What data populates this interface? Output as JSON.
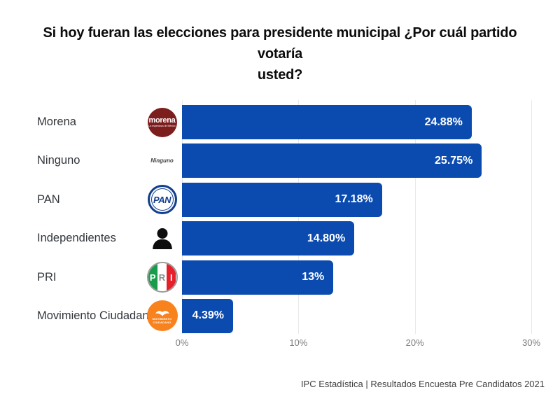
{
  "header": {
    "title_line1": "Si hoy fueran las elecciones para presidente municipal ¿Por cuál partido votaría",
    "title_line2": "usted?"
  },
  "footer": {
    "text": "IPC Estadística | Resultados Encuesta Pre Candidatos 2021"
  },
  "chart_data": {
    "type": "bar",
    "orientation": "horizontal",
    "title": "Si hoy fueran las elecciones para presidente municipal ¿Por cuál partido votaría usted?",
    "categories": [
      "Morena",
      "Ninguno",
      "PAN",
      "Independientes",
      "PRI",
      "Movimiento Ciudadano"
    ],
    "values": [
      24.88,
      25.75,
      17.18,
      14.8,
      13,
      4.39
    ],
    "value_labels": [
      "24.88%",
      "25.75%",
      "17.18%",
      "14.80%",
      "13%",
      "4.39%"
    ],
    "xlim": [
      0,
      30
    ],
    "x_ticks": [
      "0%",
      "10%",
      "20%",
      "30%"
    ],
    "x_tick_values": [
      0,
      10,
      20,
      30
    ],
    "grid": true,
    "bar_color": "#0b4bb0",
    "icons": [
      "morena-logo",
      "ninguno-text",
      "pan-logo",
      "person-silhouette",
      "pri-logo",
      "movimiento-ciudadano-logo"
    ]
  },
  "rows": [
    {
      "label": "Morena",
      "value": 24.88,
      "value_label": "24.88%"
    },
    {
      "label": "Ninguno",
      "value": 25.75,
      "value_label": "25.75%"
    },
    {
      "label": "PAN",
      "value": 17.18,
      "value_label": "17.18%"
    },
    {
      "label": "Independientes",
      "value": 14.8,
      "value_label": "14.80%"
    },
    {
      "label": "PRI",
      "value": 13,
      "value_label": "13%"
    },
    {
      "label": "Movimiento Ciudadano",
      "value": 4.39,
      "value_label": "4.39%"
    }
  ],
  "icons": {
    "morena": {
      "word": "morena",
      "sub": "La esperanza de México"
    },
    "ninguno": {
      "text": "Ninguno"
    },
    "pan": {
      "text": "PAN"
    },
    "pri": {
      "letters": [
        "P",
        "R",
        "I"
      ]
    },
    "mc": {
      "line1": "MOVIMIENTO",
      "line2": "CIUDADANO"
    }
  },
  "colors": {
    "bar": "#0b4bb0",
    "morena_red": "#7d1e1e",
    "pan_blue": "#123f8f",
    "pri_green": "#169c4b",
    "pri_red": "#e6202b",
    "mc_orange": "#f8821e",
    "grid": "#e8e8e8",
    "axis_label": "#7b7b7b"
  }
}
